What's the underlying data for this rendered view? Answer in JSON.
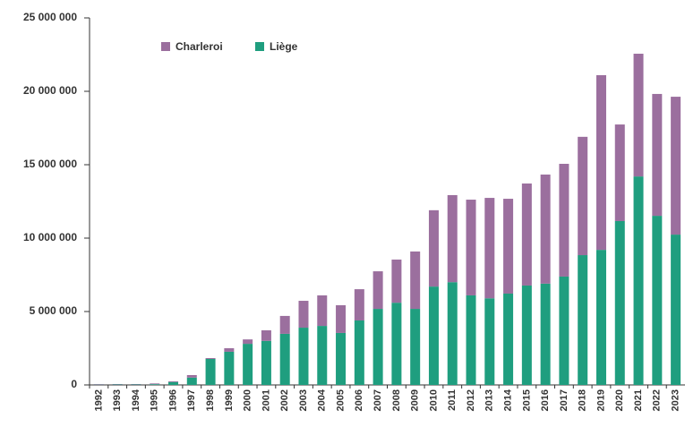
{
  "chart_data": {
    "type": "stacked_bar",
    "categories": [
      "1992",
      "1993",
      "1994",
      "1995",
      "1996",
      "1997",
      "1998",
      "1999",
      "2000",
      "2001",
      "2002",
      "2003",
      "2004",
      "2005",
      "2006",
      "2007",
      "2008",
      "2009",
      "2010",
      "2011",
      "2012",
      "2013",
      "2014",
      "2015",
      "2016",
      "2017",
      "2018",
      "2019",
      "2020",
      "2021",
      "2022",
      "2023"
    ],
    "series": [
      {
        "name": "Liège",
        "color": "#1f9e7f",
        "values": [
          20000,
          30000,
          30000,
          50000,
          200000,
          500000,
          1770000,
          2260000,
          2800000,
          3000000,
          3480000,
          3900000,
          4020000,
          3540000,
          4390000,
          5180000,
          5600000,
          5180000,
          6700000,
          7000000,
          6100000,
          5900000,
          6220000,
          6770000,
          6900000,
          7380000,
          8840000,
          9200000,
          11160000,
          14200000,
          11520000,
          10240000
        ]
      },
      {
        "name": "Charleroi",
        "color": "#9b6f9e",
        "values": [
          30000,
          30000,
          30000,
          50000,
          50000,
          170000,
          60000,
          240000,
          300000,
          720000,
          1220000,
          1830000,
          2080000,
          1890000,
          2130000,
          2560000,
          2940000,
          3910000,
          5200000,
          5930000,
          6520000,
          6840000,
          6460000,
          6950000,
          7430000,
          7680000,
          8060000,
          11900000,
          6580000,
          8360000,
          8300000,
          9390000
        ]
      }
    ],
    "ylim": [
      0,
      25000000
    ],
    "yticks": [
      0,
      {
        "value": 5000000,
        "label": "5 000 000"
      },
      {
        "value": 10000000,
        "label": "10 000 000"
      },
      {
        "value": 15000000,
        "label": "15 000 000"
      },
      {
        "value": 20000000,
        "label": "20 000 000"
      },
      {
        "value": 25000000,
        "label": "25 000 000"
      }
    ],
    "legend": "top-left"
  }
}
